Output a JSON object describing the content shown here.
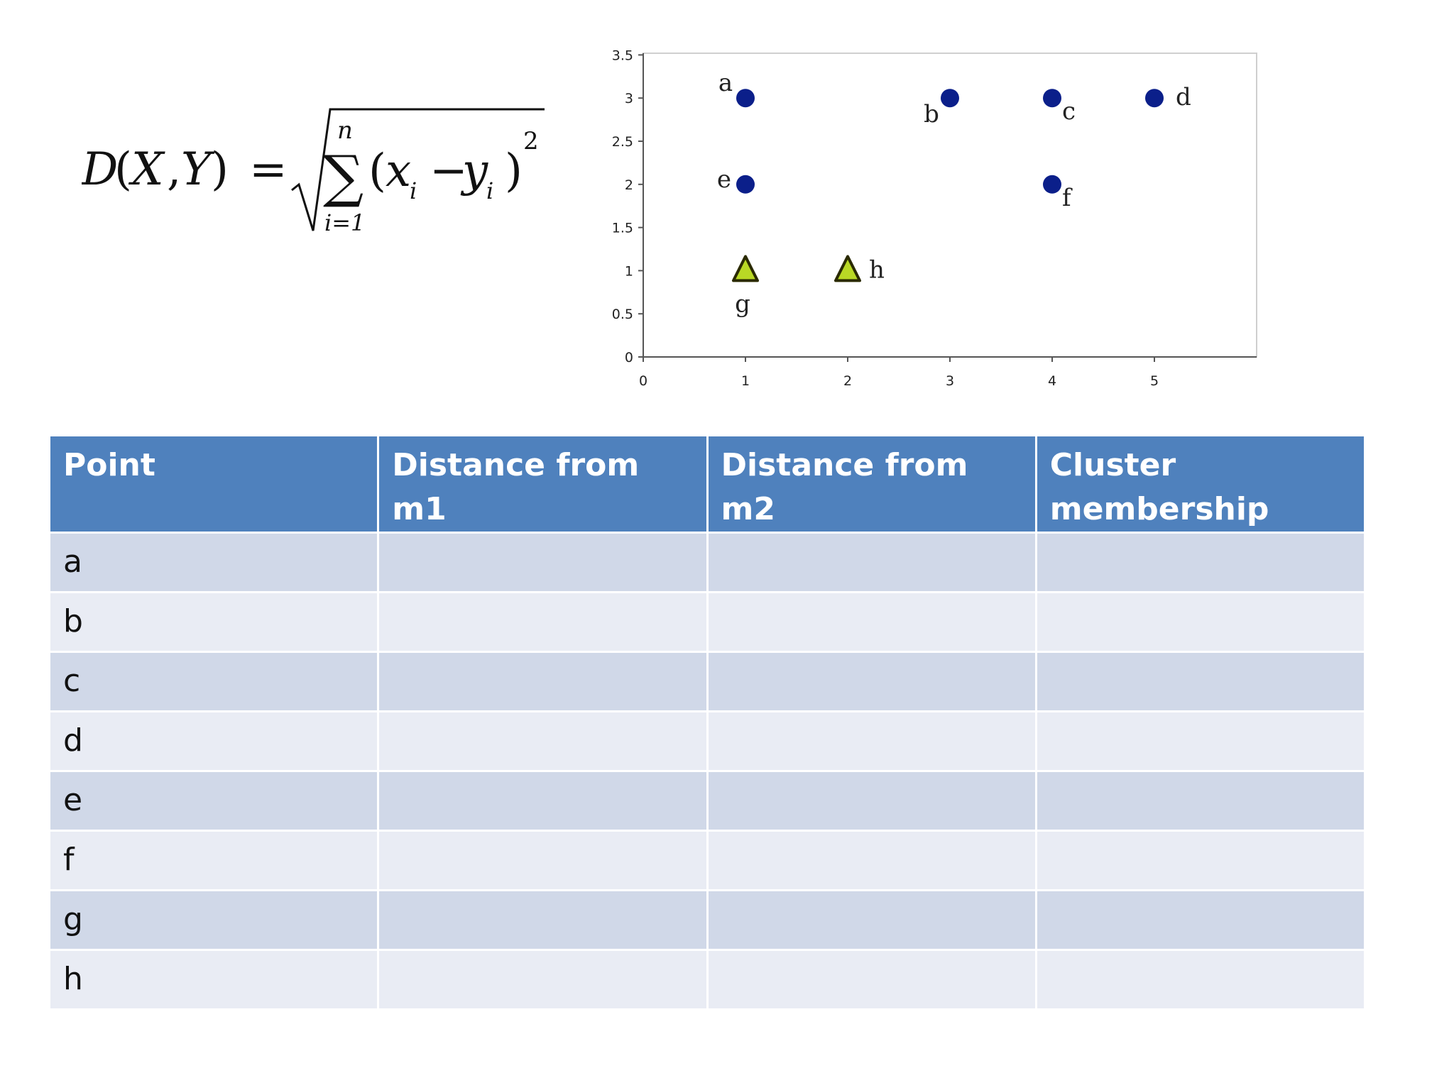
{
  "formula": {
    "lhs_D": "D",
    "lhs_open": "(",
    "lhs_X": "X",
    "lhs_comma": ",",
    "lhs_Y": "Y",
    "lhs_close": ")",
    "equals": "=",
    "sum_upper": "n",
    "sum_symbol": "∑",
    "sum_lower": "i=1",
    "term_open": "(",
    "term_x": "x",
    "term_xsub": "i",
    "term_minus": "−",
    "term_y": "y",
    "term_ysub": "i",
    "term_close": ")",
    "exponent": "2"
  },
  "chart_data": {
    "type": "scatter",
    "xlim": [
      0,
      6
    ],
    "ylim": [
      0,
      3.5
    ],
    "x_ticks": [
      0,
      1,
      2,
      3,
      4,
      5
    ],
    "y_ticks": [
      0,
      0.5,
      1,
      1.5,
      2,
      2.5,
      3,
      3.5
    ],
    "x_tick_labels": [
      "0",
      "1",
      "2",
      "3",
      "4",
      "5"
    ],
    "y_tick_labels": [
      "0",
      "0.5",
      "1",
      "1.5",
      "2",
      "2.5",
      "3",
      "3.5"
    ],
    "grid": false,
    "colors": {
      "circle": "#0b1f8a",
      "triangle_fill": "#b9d825",
      "triangle_edge": "#2a2a00"
    },
    "points": [
      {
        "label": "a",
        "x": 1,
        "y": 3,
        "marker": "circle",
        "label_pos": "upper-left"
      },
      {
        "label": "b",
        "x": 3,
        "y": 3,
        "marker": "circle",
        "label_pos": "lower-left"
      },
      {
        "label": "c",
        "x": 4,
        "y": 3,
        "marker": "circle",
        "label_pos": "lower-right"
      },
      {
        "label": "d",
        "x": 5,
        "y": 3,
        "marker": "circle",
        "label_pos": "right"
      },
      {
        "label": "e",
        "x": 1,
        "y": 2,
        "marker": "circle",
        "label_pos": "left"
      },
      {
        "label": "f",
        "x": 4,
        "y": 2,
        "marker": "circle",
        "label_pos": "lower-right"
      },
      {
        "label": "g",
        "x": 1,
        "y": 1,
        "marker": "triangle",
        "label_pos": "below"
      },
      {
        "label": "h",
        "x": 2,
        "y": 1,
        "marker": "triangle",
        "label_pos": "right"
      }
    ]
  },
  "table": {
    "headers": [
      "Point",
      "Distance from m1",
      "Distance from m2",
      "Cluster membership"
    ],
    "rows": [
      [
        "a",
        "",
        "",
        ""
      ],
      [
        "b",
        "",
        "",
        ""
      ],
      [
        "c",
        "",
        "",
        ""
      ],
      [
        "d",
        "",
        "",
        ""
      ],
      [
        "e",
        "",
        "",
        ""
      ],
      [
        "f",
        "",
        "",
        ""
      ],
      [
        "g",
        "",
        "",
        ""
      ],
      [
        "h",
        "",
        "",
        ""
      ]
    ]
  }
}
